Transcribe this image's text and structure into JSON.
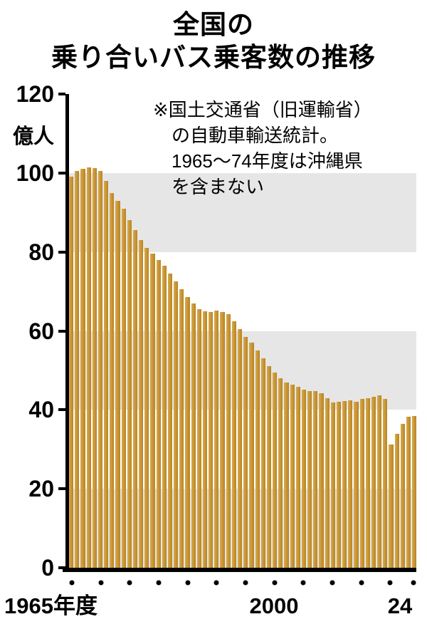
{
  "title": {
    "line1": "全国の",
    "line2": "乗り合いバス乗客数の推移"
  },
  "annotation": {
    "lines": [
      "※国土交通省（旧運輸省）",
      "の自動車輸送統計。",
      "1965～74年度は沖縄県",
      "を含まない"
    ]
  },
  "y_axis": {
    "unit": "億人"
  },
  "x_axis": {
    "left_label": "1965年度",
    "mid_label": "2000",
    "right_label": "24"
  },
  "colors": {
    "bar": "#b9841f",
    "bar_light": "#d8a94f",
    "band": "#e6e6e6",
    "axis": "#000000"
  },
  "chart_data": {
    "type": "bar",
    "title": "全国の乗り合いバス乗客数の推移",
    "ylabel": "億人",
    "xlabel": "年度",
    "ylim": [
      0,
      120
    ],
    "yticks": [
      0,
      20,
      40,
      60,
      80,
      100,
      120
    ],
    "gray_bands": [
      [
        0,
        20
      ],
      [
        40,
        60
      ],
      [
        80,
        100
      ]
    ],
    "grid": false,
    "legend": "none",
    "dot_years": [
      1965,
      1970,
      1975,
      1980,
      1985,
      1990,
      1995,
      2000,
      2005,
      2010,
      2015,
      2020,
      2024
    ],
    "years": [
      1965,
      1966,
      1967,
      1968,
      1969,
      1970,
      1971,
      1972,
      1973,
      1974,
      1975,
      1976,
      1977,
      1978,
      1979,
      1980,
      1981,
      1982,
      1983,
      1984,
      1985,
      1986,
      1987,
      1988,
      1989,
      1990,
      1991,
      1992,
      1993,
      1994,
      1995,
      1996,
      1997,
      1998,
      1999,
      2000,
      2001,
      2002,
      2003,
      2004,
      2005,
      2006,
      2007,
      2008,
      2009,
      2010,
      2011,
      2012,
      2013,
      2014,
      2015,
      2016,
      2017,
      2018,
      2019,
      2020,
      2021,
      2022,
      2023,
      2024
    ],
    "values": [
      99.0,
      100.5,
      101.0,
      101.5,
      101.3,
      100.5,
      98.0,
      95.0,
      93.0,
      91.0,
      88.0,
      85.5,
      83.0,
      81.0,
      79.5,
      78.0,
      76.5,
      74.5,
      72.5,
      70.5,
      68.5,
      67.0,
      65.5,
      65.0,
      64.8,
      65.2,
      64.8,
      64.3,
      62.5,
      60.5,
      58.5,
      57.0,
      55.0,
      53.0,
      51.0,
      49.5,
      48.0,
      47.0,
      46.3,
      45.8,
      45.2,
      44.8,
      44.8,
      44.2,
      43.0,
      41.9,
      42.0,
      42.2,
      42.4,
      42.0,
      42.7,
      43.0,
      43.4,
      43.6,
      42.8,
      31.3,
      34.0,
      36.5,
      38.2,
      38.4
    ]
  }
}
